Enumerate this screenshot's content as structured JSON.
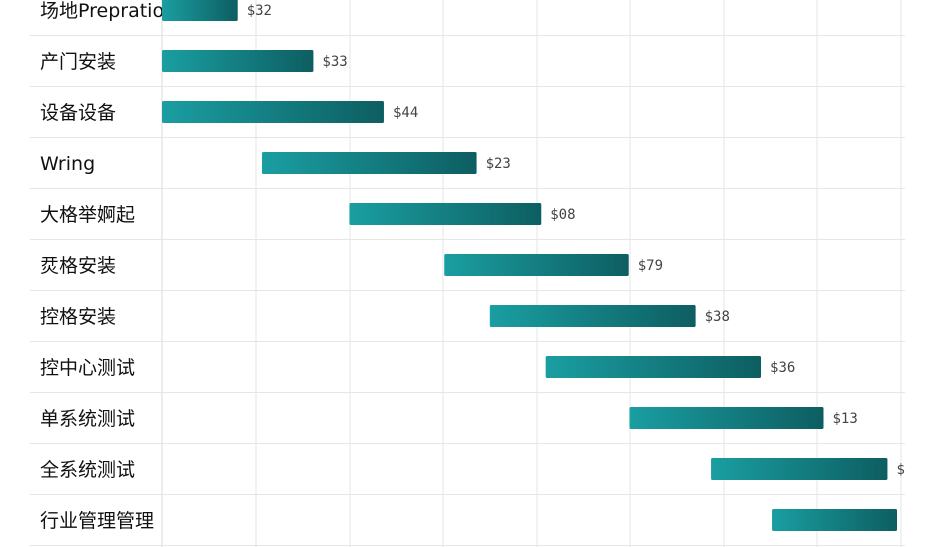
{
  "chart_data": {
    "type": "bar",
    "orientation": "horizontal-gantt",
    "title": "",
    "xlabel": "",
    "ylabel": "",
    "grid": true,
    "legend": "none",
    "colors": {
      "bar_start": "#1a9ea1",
      "bar_end": "#0d5e61",
      "grid": "#e6e6e6",
      "label": "#111111",
      "value_label": "#444444"
    },
    "xlim": [
      0,
      100
    ],
    "tasks": [
      {
        "name": "场地Prepration",
        "start": 0,
        "end": 10.3,
        "label": "$32"
      },
      {
        "name": "产门安装",
        "start": 0,
        "end": 20.6,
        "label": "$33"
      },
      {
        "name": "设备设备",
        "start": 0,
        "end": 30.2,
        "label": "$44"
      },
      {
        "name": "Wring",
        "start": 13.6,
        "end": 42.8,
        "label": "$23"
      },
      {
        "name": "大格举婀起",
        "start": 25.5,
        "end": 51.6,
        "label": "$08"
      },
      {
        "name": "烎格安装",
        "start": 38.4,
        "end": 63.5,
        "label": "$79"
      },
      {
        "name": "控格安装",
        "start": 44.6,
        "end": 72.6,
        "label": "$38"
      },
      {
        "name": "控中心测试",
        "start": 52.2,
        "end": 81.5,
        "label": "$36"
      },
      {
        "name": "单系统测试",
        "start": 63.6,
        "end": 90.0,
        "label": "$13"
      },
      {
        "name": "全系统测试",
        "start": 74.7,
        "end": 98.7,
        "label": "$"
      },
      {
        "name": "行业管理管理",
        "start": 83.0,
        "end": 100,
        "label": ""
      }
    ]
  }
}
